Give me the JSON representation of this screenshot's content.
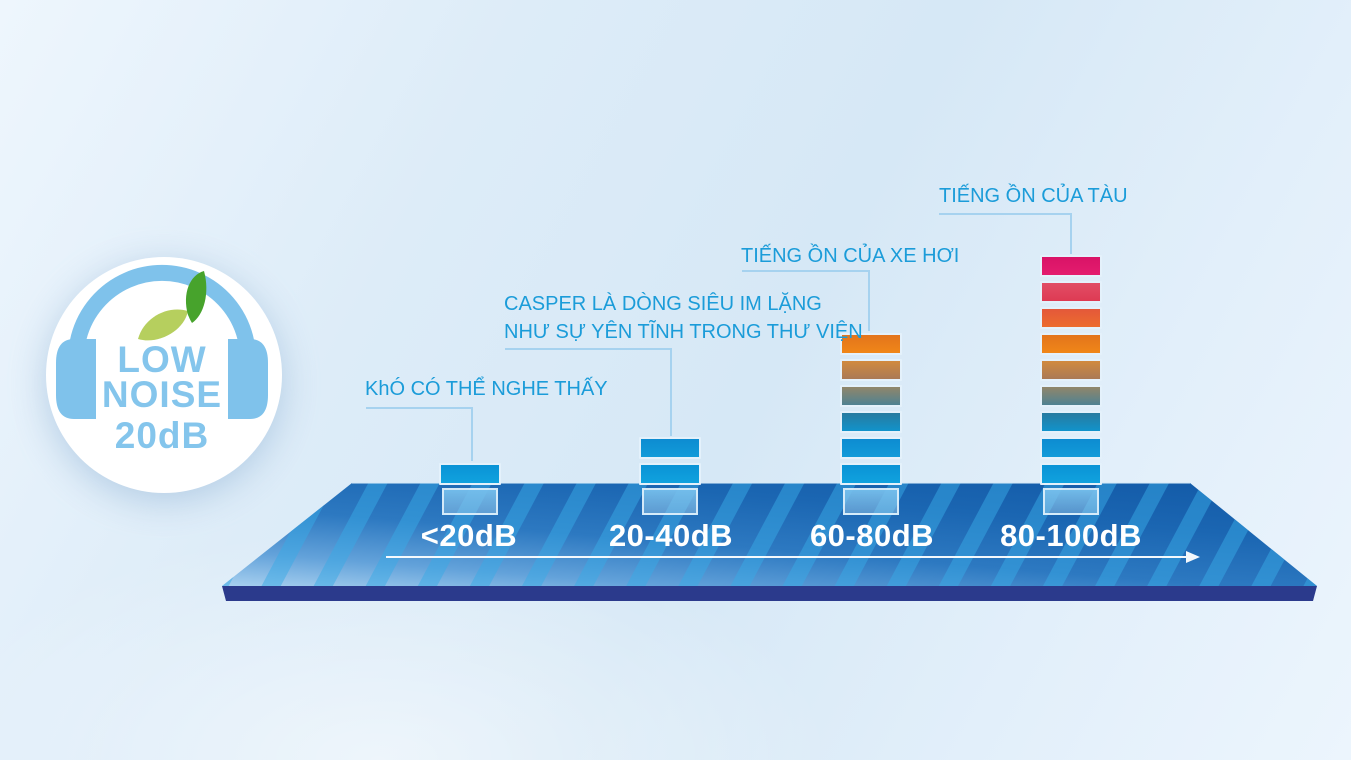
{
  "badge": {
    "line1": "LOW",
    "line2": "NOISE",
    "line3": "20dB",
    "headphones_color": "#7fc2eb",
    "leaf_light_color": "#b6cf5e",
    "leaf_dark_color": "#47a32c"
  },
  "chart_data": {
    "type": "bar",
    "categories": [
      "<20dB",
      "20-40dB",
      "60-80dB",
      "80-100dB"
    ],
    "values": [
      1,
      2,
      6,
      9
    ],
    "value_meaning": "number of stacked blocks per noise range",
    "annotations": [
      {
        "target": "<20dB",
        "lines": [
          "KhÓ CÓ THỂ NGHE THẤY"
        ]
      },
      {
        "target": "20-40dB",
        "lines": [
          "CASPER LÀ DÒNG SIÊU IM LẶNG",
          "NHƯ SỰ YÊN TĨNH TRONG THƯ VIỆN"
        ]
      },
      {
        "target": "60-80dB",
        "lines": [
          "TIẾNG ỒN CỦA XE HƠI"
        ]
      },
      {
        "target": "80-100dB",
        "lines": [
          "TIẾNG ỒN CỦA TÀU"
        ]
      }
    ],
    "segment_palette_top_to_bottom": [
      {
        "top": "#d91367",
        "bottom": "#e41c6e"
      },
      {
        "top": "#e14e66",
        "bottom": "#de3a53"
      },
      {
        "top": "#e4583a",
        "bottom": "#ec6c2e"
      },
      {
        "top": "#e3741c",
        "bottom": "#f08618"
      },
      {
        "top": "#d18a3e",
        "bottom": "#aa7a56"
      },
      {
        "top": "#91866a",
        "bottom": "#4f8292"
      },
      {
        "top": "#287ba0",
        "bottom": "#1193cb"
      },
      {
        "top": "#0d8cd1",
        "bottom": "#129bd9"
      },
      {
        "top": "#0a93d6",
        "bottom": "#10a2de"
      }
    ],
    "axis_arrow_direction": "left-to-right",
    "legend_position": "none"
  },
  "colors": {
    "annotation_text": "#1b9cd9",
    "category_text": "#ffffff",
    "connector_line": "#a6d2ef",
    "platform_base_edge": "#2b3a8c",
    "platform_stripe": "#38aae6"
  }
}
